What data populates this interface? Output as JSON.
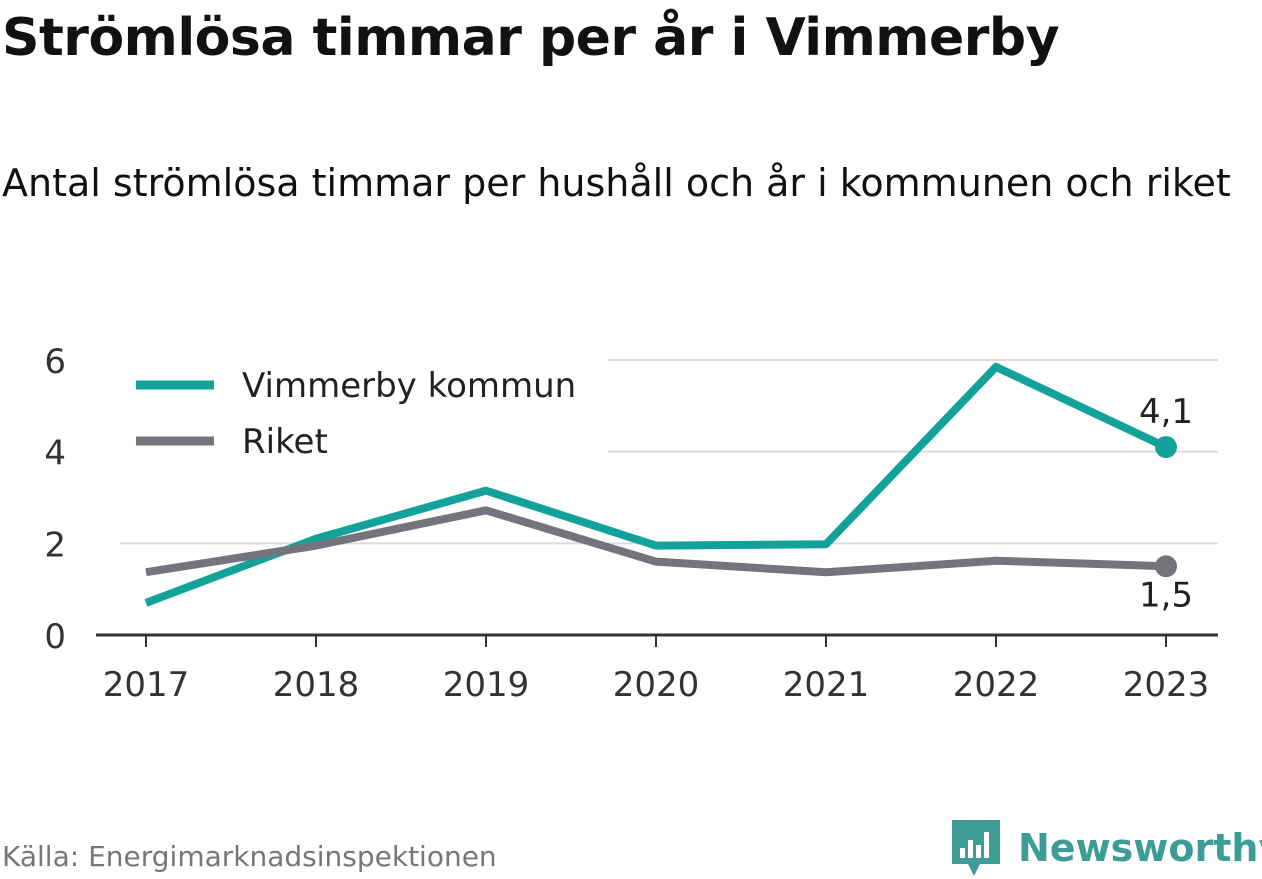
{
  "title": "Strömlösa timmar per år i Vimmerby",
  "subtitle": "Antal strömlösa timmar per hushåll och år i kommunen och riket",
  "source": "Källa: Energimarknadsinspektionen",
  "brand": {
    "name": "Newsworthy",
    "icon": "newsworthy-logo-icon",
    "color": "#3d9c96"
  },
  "chart_data": {
    "type": "line",
    "x": [
      "2017",
      "2018",
      "2019",
      "2020",
      "2021",
      "2022",
      "2023"
    ],
    "yticks": [
      "0",
      "2",
      "4",
      "6"
    ],
    "ylim": [
      0,
      6
    ],
    "grid": true,
    "legend_position": "top-left",
    "series": [
      {
        "name": "Vimmerby kommun",
        "color": "#13a29a",
        "values": [
          0.7,
          2.1,
          3.15,
          1.95,
          1.98,
          5.85,
          4.1
        ],
        "end_label": "4,1"
      },
      {
        "name": "Riket",
        "color": "#74747c",
        "values": [
          1.37,
          1.95,
          2.72,
          1.6,
          1.37,
          1.62,
          1.5
        ],
        "end_label": "1,5"
      }
    ]
  }
}
